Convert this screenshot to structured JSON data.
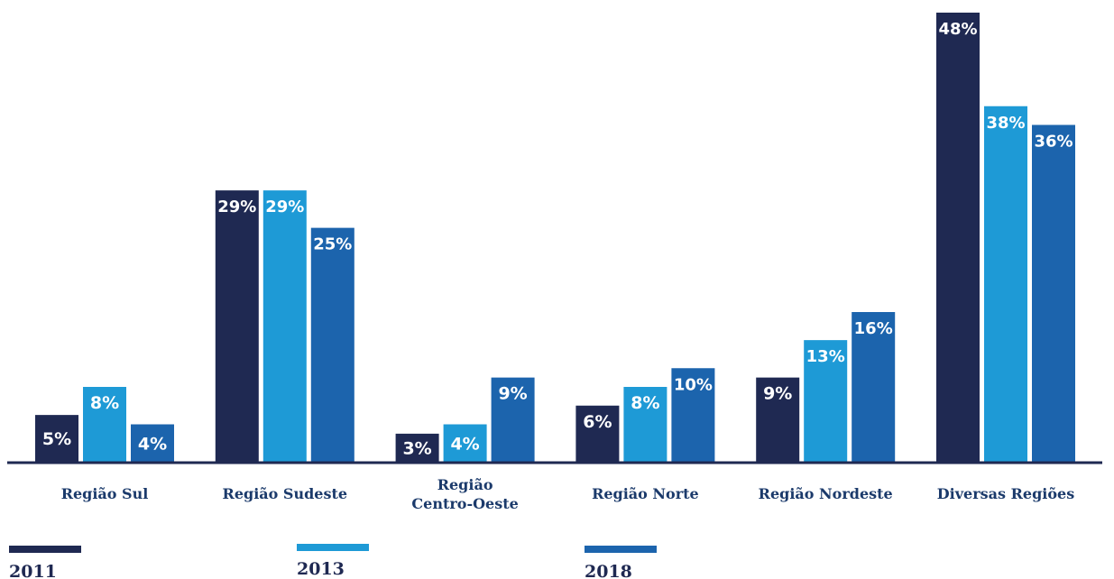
{
  "chart_data": {
    "type": "bar",
    "categories": [
      [
        "Região Sul"
      ],
      [
        "Região Sudeste"
      ],
      [
        "Região",
        "Centro-Oeste"
      ],
      [
        "Região Norte"
      ],
      [
        "Região Nordeste"
      ],
      [
        "Diversas Regiões"
      ]
    ],
    "series": [
      {
        "name": "2011",
        "color": "#1f2952",
        "values": [
          5,
          29,
          3,
          6,
          9,
          48
        ],
        "labels": [
          "5%",
          "29%",
          "3%",
          "6%",
          "9%",
          "48%"
        ]
      },
      {
        "name": "2013",
        "color": "#1e9ad6",
        "values": [
          8,
          29,
          4,
          8,
          13,
          38
        ],
        "labels": [
          "8%",
          "29%",
          "4%",
          "8%",
          "13%",
          "38%"
        ]
      },
      {
        "name": "2018",
        "color": "#1c64ad",
        "values": [
          4,
          25,
          9,
          10,
          16,
          36
        ],
        "labels": [
          "4%",
          "25%",
          "9%",
          "10%",
          "16%",
          "36%"
        ]
      }
    ],
    "ylim": [
      0,
      48
    ],
    "axis_color": "#1f2952",
    "legend_position": "bottom"
  }
}
